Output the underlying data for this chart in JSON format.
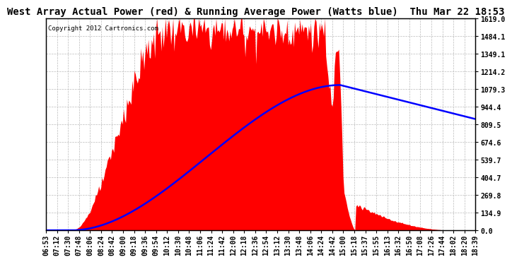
{
  "title": "West Array Actual Power (red) & Running Average Power (Watts blue)  Thu Mar 22 18:53",
  "copyright": "Copyright 2012 Cartronics.com",
  "ylabel_right": [
    "1619.0",
    "1484.1",
    "1349.1",
    "1214.2",
    "1079.3",
    "944.4",
    "809.5",
    "674.6",
    "539.7",
    "404.7",
    "269.8",
    "134.9",
    "0.0"
  ],
  "y_values": [
    1619.0,
    1484.1,
    1349.1,
    1214.2,
    1079.3,
    944.4,
    809.5,
    674.6,
    539.7,
    404.7,
    269.8,
    134.9,
    0.0
  ],
  "ymax": 1619.0,
  "ymin": 0.0,
  "x_tick_labels": [
    "06:53",
    "07:12",
    "07:30",
    "07:48",
    "08:06",
    "08:24",
    "08:42",
    "09:00",
    "09:18",
    "09:36",
    "09:54",
    "10:12",
    "10:30",
    "10:48",
    "11:06",
    "11:24",
    "11:42",
    "12:00",
    "12:18",
    "12:36",
    "12:54",
    "13:12",
    "13:30",
    "13:48",
    "14:06",
    "14:24",
    "14:42",
    "15:00",
    "15:18",
    "15:37",
    "15:55",
    "16:13",
    "16:32",
    "16:50",
    "17:08",
    "17:26",
    "17:44",
    "18:02",
    "18:20",
    "18:39"
  ],
  "bg_color": "#ffffff",
  "plot_bg_color": "#ffffff",
  "grid_color": "#bbbbbb",
  "red_color": "#ff0000",
  "blue_color": "#0000ff",
  "title_fontsize": 10,
  "tick_fontsize": 7,
  "copyright_fontsize": 6.5
}
